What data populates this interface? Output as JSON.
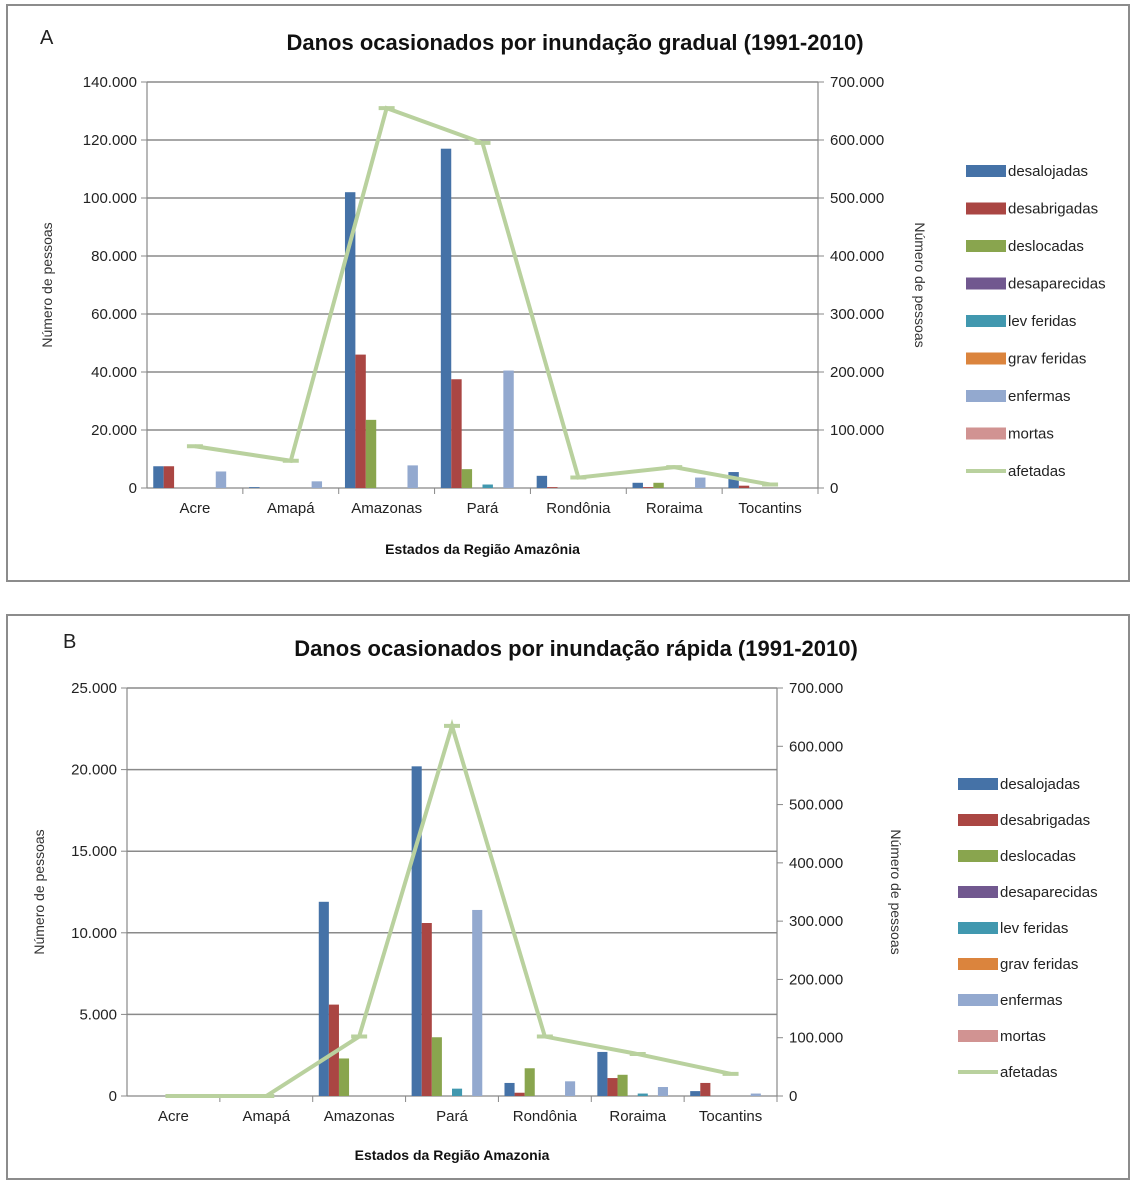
{
  "chart_data": [
    {
      "panel_letter": "A",
      "type": "bar",
      "title": "Danos ocasionados por inundação gradual (1991-2010)",
      "xlabel": "Estados da Região Amazônia",
      "ylabel": "Número de pessoas",
      "y2label": "Número de pessoas",
      "ylim": [
        0,
        140000
      ],
      "y2lim": [
        0,
        700000
      ],
      "yticks": [
        "0",
        "20.000",
        "40.000",
        "60.000",
        "80.000",
        "100.000",
        "120.000",
        "140.000"
      ],
      "y2ticks": [
        "0",
        "100.000",
        "200.000",
        "300.000",
        "400.000",
        "500.000",
        "600.000",
        "700.000"
      ],
      "categories": [
        "Acre",
        "Amapá",
        "Amazonas",
        "Pará",
        "Rondônia",
        "Roraima",
        "Tocantins"
      ],
      "grid": true,
      "legend_position": "right",
      "series": [
        {
          "name": "desalojadas",
          "color": "#4572A7",
          "values": [
            7500,
            300,
            102000,
            117000,
            4200,
            1800,
            5500
          ]
        },
        {
          "name": "desabrigadas",
          "color": "#AA4643",
          "values": [
            7500,
            0,
            46000,
            37500,
            300,
            300,
            800
          ]
        },
        {
          "name": "deslocadas",
          "color": "#89A54E",
          "values": [
            0,
            0,
            23500,
            6500,
            0,
            1800,
            0
          ]
        },
        {
          "name": "desaparecidas",
          "color": "#71588F",
          "values": [
            0,
            0,
            0,
            0,
            0,
            0,
            0
          ]
        },
        {
          "name": "lev feridas",
          "color": "#4198AF",
          "values": [
            0,
            0,
            0,
            1200,
            0,
            0,
            0
          ]
        },
        {
          "name": "grav feridas",
          "color": "#DB843D",
          "values": [
            0,
            0,
            0,
            0,
            0,
            0,
            0
          ]
        },
        {
          "name": "enfermas",
          "color": "#93A9CF",
          "values": [
            5700,
            2300,
            7800,
            40500,
            0,
            3600,
            0
          ]
        },
        {
          "name": "mortas",
          "color": "#D19392",
          "values": [
            0,
            0,
            0,
            0,
            0,
            0,
            0
          ]
        },
        {
          "name": "afetadas",
          "type": "line",
          "axis": "right",
          "color": "#B9D19E",
          "values": [
            72000,
            47000,
            655000,
            595000,
            18000,
            36000,
            6000
          ]
        }
      ]
    },
    {
      "panel_letter": "B",
      "type": "bar",
      "title": "Danos ocasionados por inundação rápida (1991-2010)",
      "xlabel": "Estados da Região Amazonia",
      "ylabel": "Número de pessoas",
      "y2label": "Número de pessoas",
      "ylim": [
        0,
        25000
      ],
      "y2lim": [
        0,
        700000
      ],
      "yticks": [
        "0",
        "5.000",
        "10.000",
        "15.000",
        "20.000",
        "25.000"
      ],
      "y2ticks": [
        "0",
        "100.000",
        "200.000",
        "300.000",
        "400.000",
        "500.000",
        "600.000",
        "700.000"
      ],
      "categories": [
        "Acre",
        "Amapá",
        "Amazonas",
        "Pará",
        "Rondônia",
        "Roraima",
        "Tocantins"
      ],
      "grid": true,
      "legend_position": "right",
      "series": [
        {
          "name": "desalojadas",
          "color": "#4572A7",
          "values": [
            0,
            0,
            11900,
            20200,
            800,
            2700,
            300
          ]
        },
        {
          "name": "desabrigadas",
          "color": "#AA4643",
          "values": [
            0,
            0,
            5600,
            10600,
            200,
            1100,
            800
          ]
        },
        {
          "name": "deslocadas",
          "color": "#89A54E",
          "values": [
            0,
            0,
            2300,
            3600,
            1700,
            1300,
            0
          ]
        },
        {
          "name": "desaparecidas",
          "color": "#71588F",
          "values": [
            0,
            0,
            0,
            0,
            0,
            0,
            0
          ]
        },
        {
          "name": "lev feridas",
          "color": "#4198AF",
          "values": [
            0,
            0,
            0,
            450,
            0,
            150,
            0
          ]
        },
        {
          "name": "grav feridas",
          "color": "#DB843D",
          "values": [
            0,
            0,
            0,
            0,
            0,
            0,
            0
          ]
        },
        {
          "name": "enfermas",
          "color": "#93A9CF",
          "values": [
            0,
            0,
            0,
            11400,
            900,
            550,
            150
          ]
        },
        {
          "name": "mortas",
          "color": "#D19392",
          "values": [
            0,
            0,
            0,
            0,
            0,
            0,
            0
          ]
        },
        {
          "name": "afetadas",
          "type": "line",
          "axis": "right",
          "color": "#B9D19E",
          "values": [
            0,
            0,
            102000,
            635000,
            102000,
            72000,
            38000
          ]
        }
      ]
    }
  ]
}
